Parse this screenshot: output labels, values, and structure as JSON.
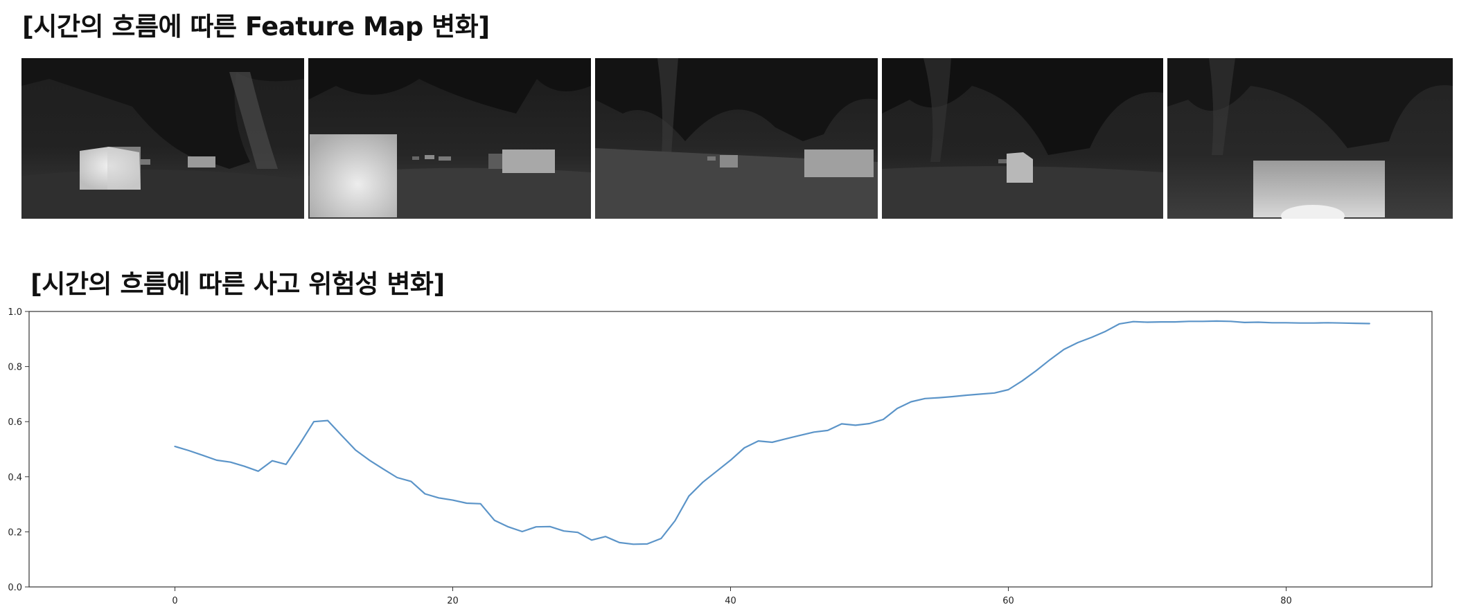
{
  "feature_section": {
    "title": "[시간의 흐름에 따른 Feature Map 변화]",
    "frame_count": 5
  },
  "risk_section": {
    "title": "[시간의 흐름에 따른 사고 위험성 변화]"
  },
  "chart_data": {
    "type": "line",
    "title": "",
    "xlabel": "",
    "ylabel": "",
    "xlim": [
      -10.5,
      90.5
    ],
    "ylim": [
      0.0,
      1.0
    ],
    "xticks": [
      0,
      20,
      40,
      60,
      80
    ],
    "yticks": [
      0.0,
      0.2,
      0.4,
      0.6,
      0.8,
      1.0
    ],
    "ytick_labels": [
      "0.0",
      "0.2",
      "0.4",
      "0.6",
      "0.8",
      "1.0"
    ],
    "grid": false,
    "legend": "none",
    "series": [
      {
        "color": "#5b94c8",
        "x": [
          0,
          1,
          2,
          3,
          4,
          5,
          6,
          7,
          8,
          9,
          10,
          11,
          12,
          13,
          14,
          15,
          16,
          17,
          18,
          19,
          20,
          21,
          22,
          23,
          24,
          25,
          26,
          27,
          28,
          29,
          30,
          31,
          32,
          33,
          34,
          35,
          36,
          37,
          38,
          39,
          40,
          41,
          42,
          43,
          44,
          45,
          46,
          47,
          48,
          49,
          50,
          51,
          52,
          53,
          54,
          55,
          56,
          57,
          58,
          59,
          60,
          61,
          62,
          63,
          64,
          65,
          66,
          67,
          68,
          69,
          70,
          71,
          72,
          73,
          74,
          75,
          76,
          77,
          78,
          79,
          80,
          81,
          82,
          83,
          84,
          85,
          86
        ],
        "y": [
          0.51,
          0.495,
          0.478,
          0.46,
          0.453,
          0.438,
          0.42,
          0.458,
          0.445,
          0.52,
          0.6,
          0.604,
          0.55,
          0.497,
          0.46,
          0.428,
          0.397,
          0.383,
          0.338,
          0.323,
          0.315,
          0.304,
          0.302,
          0.242,
          0.218,
          0.201,
          0.218,
          0.219,
          0.203,
          0.198,
          0.17,
          0.183,
          0.161,
          0.155,
          0.156,
          0.176,
          0.24,
          0.33,
          0.38,
          0.42,
          0.46,
          0.505,
          0.53,
          0.525,
          0.538,
          0.55,
          0.562,
          0.568,
          0.592,
          0.587,
          0.593,
          0.608,
          0.648,
          0.672,
          0.684,
          0.687,
          0.691,
          0.696,
          0.7,
          0.704,
          0.716,
          0.748,
          0.785,
          0.825,
          0.862,
          0.887,
          0.906,
          0.928,
          0.955,
          0.963,
          0.961,
          0.962,
          0.962,
          0.964,
          0.964,
          0.965,
          0.964,
          0.96,
          0.961,
          0.959,
          0.959,
          0.958,
          0.958,
          0.959,
          0.958,
          0.957,
          0.956
        ]
      }
    ]
  }
}
